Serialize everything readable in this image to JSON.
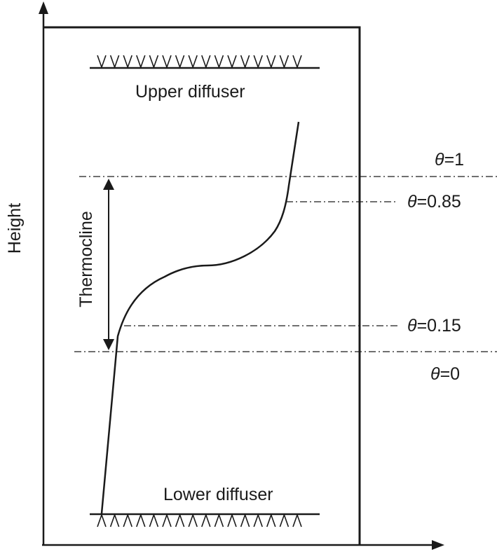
{
  "axes": {
    "y_label": "Height"
  },
  "tank": {
    "upper_diffuser_label": "Upper diffuser",
    "lower_diffuser_label": "Lower diffuser",
    "upper_nozzle_glyph": "V",
    "lower_nozzle_glyph": "Λ"
  },
  "thermocline": {
    "label": "Thermocline"
  },
  "levels": [
    {
      "symbol": "θ",
      "value": "=1"
    },
    {
      "symbol": "θ",
      "value": "=0.85"
    },
    {
      "symbol": "θ",
      "value": "=0.15"
    },
    {
      "symbol": "θ",
      "value": "=0"
    }
  ],
  "colors": {
    "ink": "#1a1a1a",
    "background": "#ffffff"
  }
}
